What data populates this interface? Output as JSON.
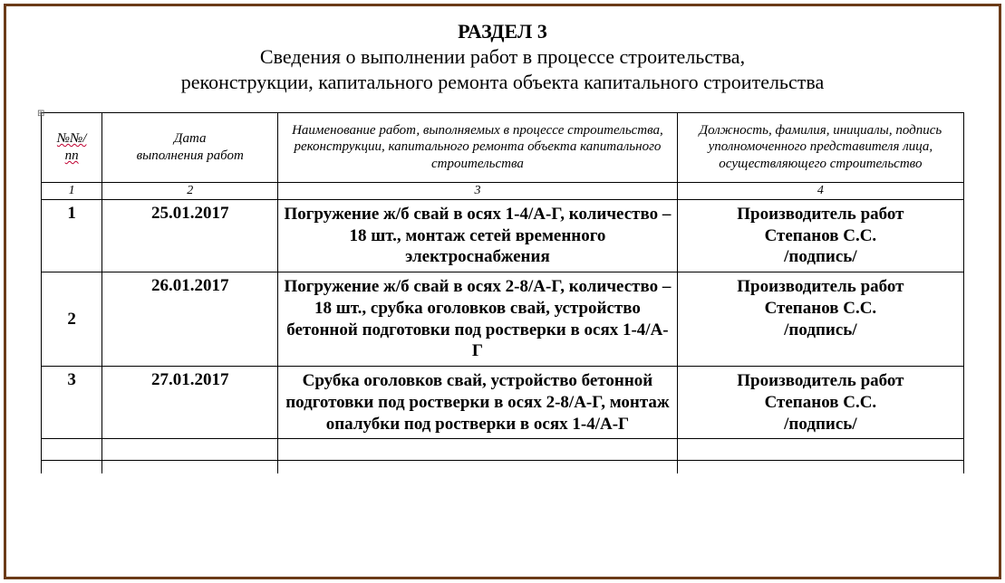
{
  "title": {
    "line1": "РАЗДЕЛ 3",
    "line2": "Сведения о выполнении работ в процессе строительства,",
    "line3": "реконструкции, капитального ремонта объекта капитального строительства"
  },
  "anchor_glyph": "⊞",
  "table": {
    "headers": {
      "c1_a": "№№/",
      "c1_b": "пп",
      "c2_a": "Дата",
      "c2_b": "выполнения работ",
      "c3": "Наименование работ, выполняемых в процессе строительства, реконструкции, капитального ремонта объекта капитального строительства",
      "c4": "Должность, фамилия, инициалы, подпись уполномоченного представителя лица, осуществляющего строительство"
    },
    "col_numbers": {
      "c1": "1",
      "c2": "2",
      "c3": "3",
      "c4": "4"
    },
    "signer": {
      "role": "Производитель работ",
      "name": "Степанов С.С.",
      "sig": "/подпись/"
    },
    "rows": [
      {
        "n": "1",
        "date": "25.01.2017",
        "desc": "Погружение ж/б свай в осях 1-4/А-Г, количество – 18 шт., монтаж сетей временного электроснабжения"
      },
      {
        "n": "2",
        "date": "26.01.2017",
        "desc": "Погружение ж/б свай в осях 2-8/А-Г, количество – 18 шт., срубка оголовков свай, устройство бетонной подготовки под ростверки в осях 1-4/А-Г"
      },
      {
        "n": "3",
        "date": "27.01.2017",
        "desc": "Срубка оголовков свай, устройство бетонной подготовки под ростверки в осях 2-8/А-Г, монтаж опалубки под ростверки в осях 1-4/А-Г"
      }
    ]
  }
}
